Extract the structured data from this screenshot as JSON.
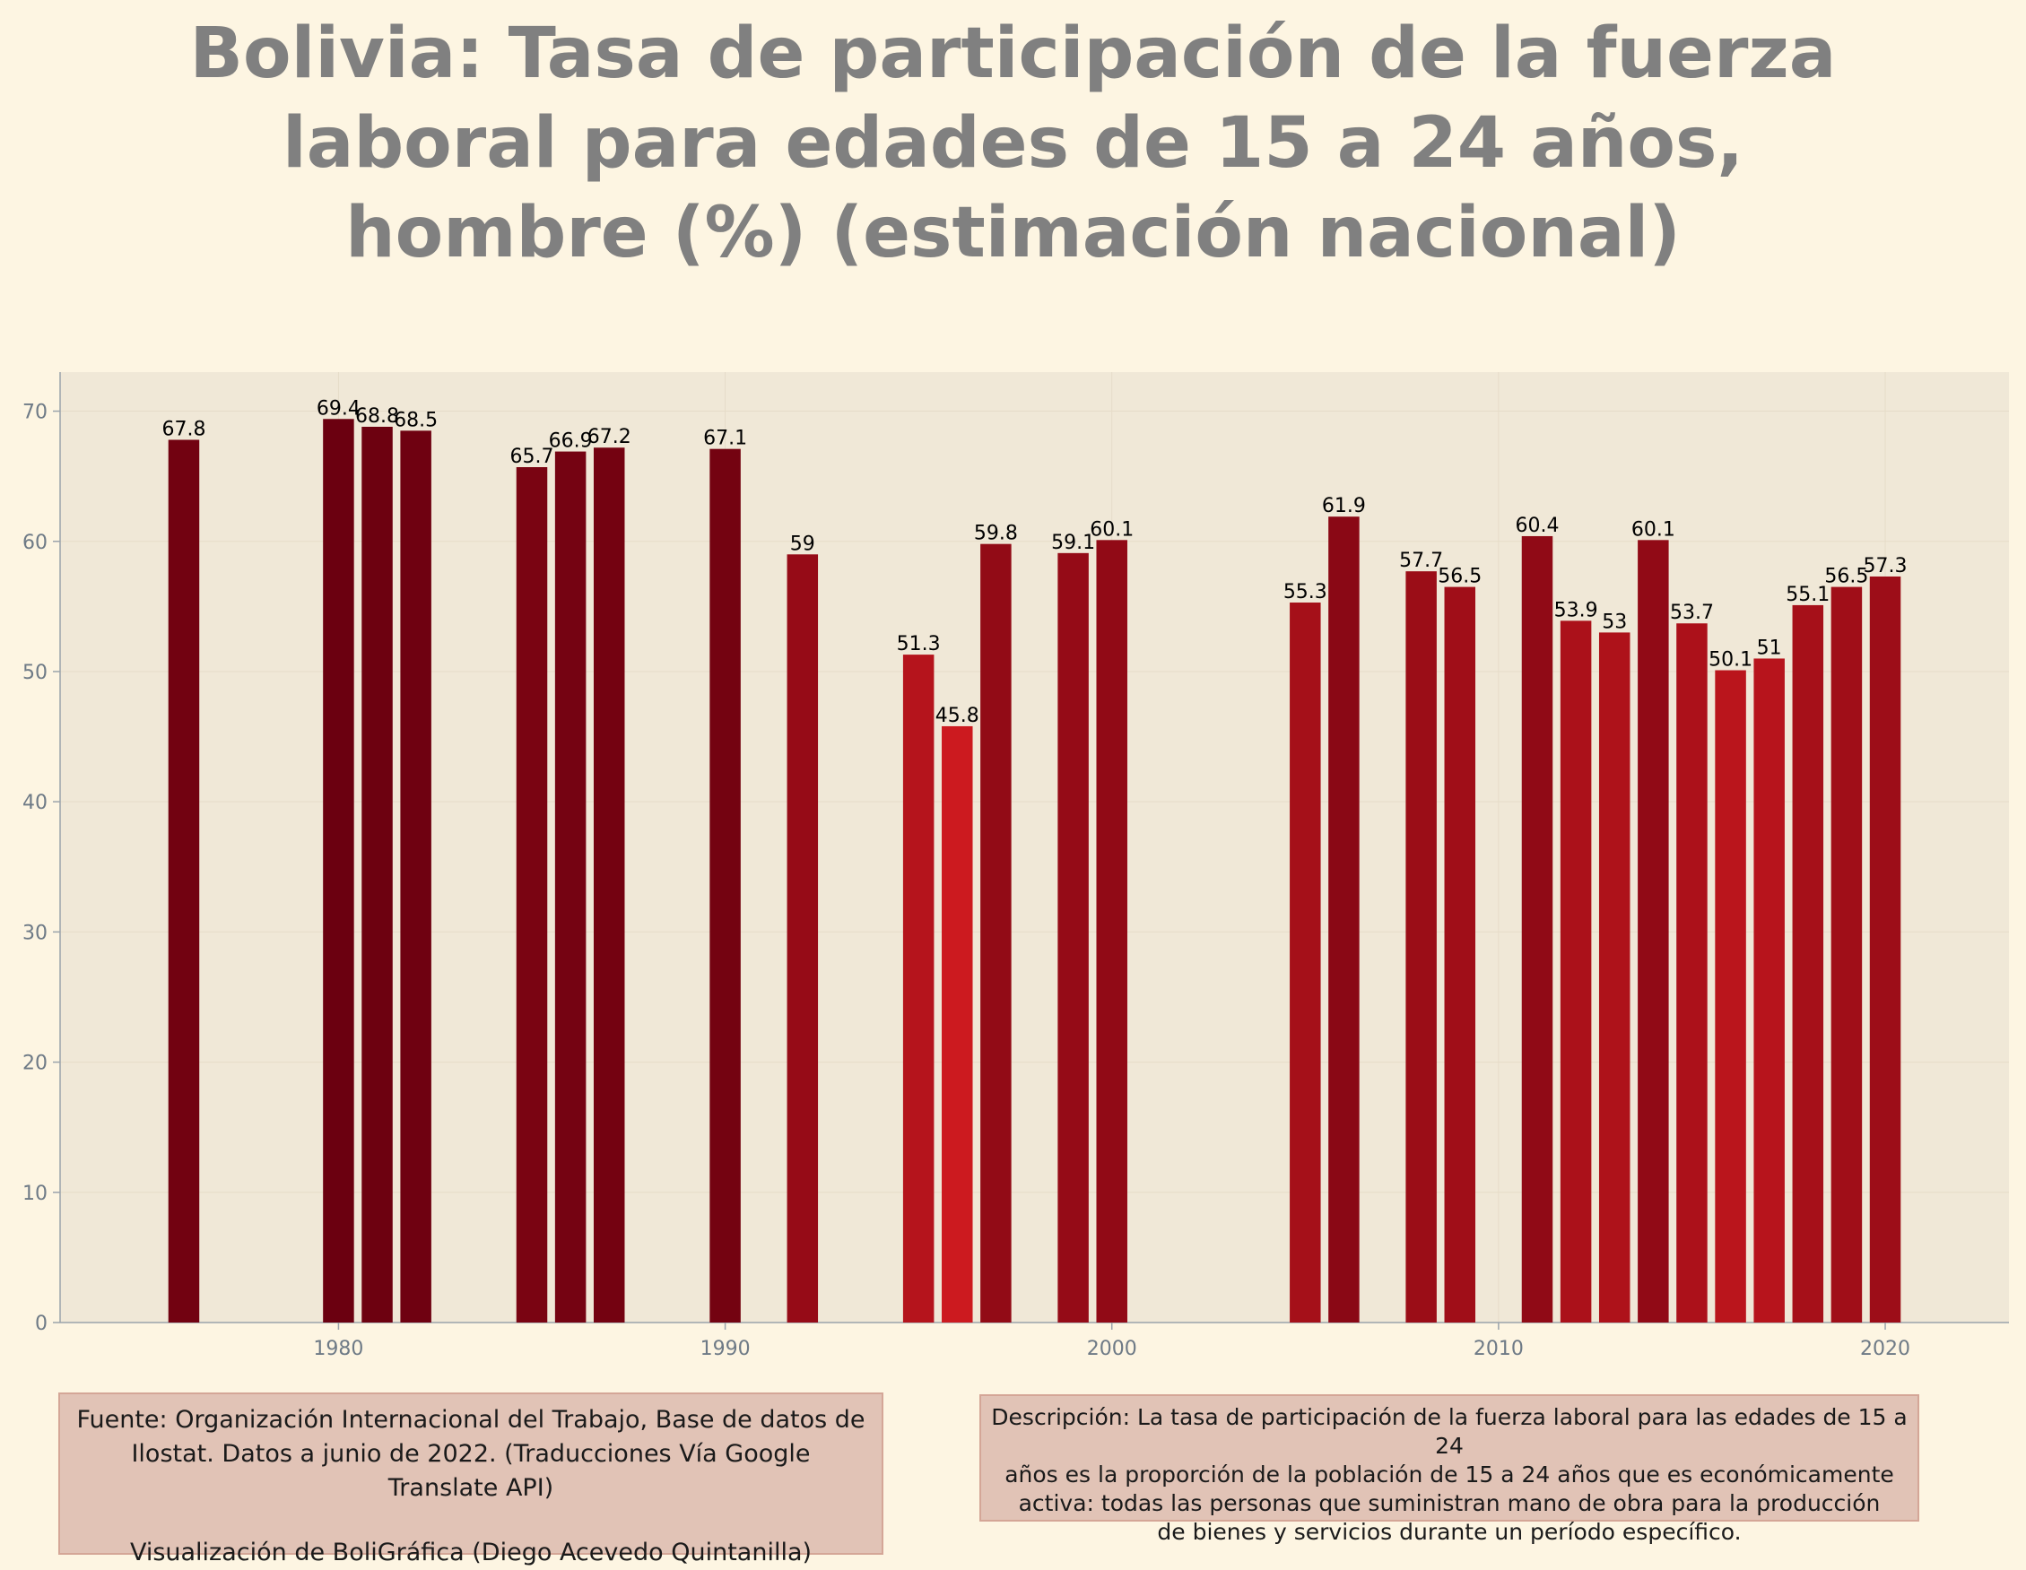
{
  "title_lines": [
    "Bolivia:  Tasa de participación de la fuerza",
    "laboral para edades de 15 a 24 años,",
    "hombre (%) (estimación nacional)"
  ],
  "source_box": {
    "lines": [
      "Fuente: Organización Internacional del Trabajo, Base de datos de",
      "Ilostat. Datos a junio de 2022. (Traducciones Vía Google",
      "Translate API)"
    ],
    "credit": "Visualización de BoliGráfica (Diego Acevedo Quintanilla)"
  },
  "description_box": {
    "lines": [
      "Descripción: La tasa de participación de la fuerza laboral para las edades de 15 a 24",
      "años es la proporción de la población de 15 a 24 años que es económicamente",
      "activa: todas las personas que suministran mano de obra para la producción",
      "de bienes y servicios durante un período específico."
    ]
  },
  "colors": {
    "background": "#fdf5e2",
    "plot_background": "#f0e8d7",
    "title": "#808080",
    "tick": "#6e7a86",
    "bar_high": "#6b0010",
    "bar_low": "#cc1a1f",
    "box_fill": "#e1c3b6",
    "box_border": "#d4a697"
  },
  "chart_data": {
    "type": "bar",
    "title": "Bolivia:  Tasa de participación de la fuerza laboral para edades de 15 a 24 años, hombre (%) (estimación nacional)",
    "xlabel": "",
    "ylabel": "",
    "x": [
      1976,
      1980,
      1981,
      1982,
      1985,
      1986,
      1987,
      1990,
      1992,
      1995,
      1996,
      1997,
      1999,
      2000,
      2005,
      2006,
      2008,
      2009,
      2011,
      2012,
      2013,
      2014,
      2015,
      2016,
      2017,
      2018,
      2019,
      2020
    ],
    "values": [
      67.8,
      69.4,
      68.8,
      68.5,
      65.7,
      66.9,
      67.2,
      67.1,
      59,
      51.3,
      45.8,
      59.8,
      59.1,
      60.1,
      55.3,
      61.9,
      57.7,
      56.5,
      60.4,
      53.9,
      53,
      60.1,
      53.7,
      50.1,
      51,
      55.1,
      56.5,
      57.3
    ],
    "data_labels": [
      "67.8",
      "69.4",
      "68.8",
      "68.5",
      "65.7",
      "66.9",
      "67.2",
      "67.1",
      "59",
      "51.3",
      "45.8",
      "59.8",
      "59.1",
      "60.1",
      "55.3",
      "61.9",
      "57.7",
      "56.5",
      "60.4",
      "53.9",
      "53",
      "60.1",
      "53.7",
      "50.1",
      "51",
      "55.1",
      "56.5",
      "57.3"
    ],
    "xlim": [
      1972.8,
      2023.2
    ],
    "ylim": [
      0,
      73
    ],
    "xticks": [
      1980,
      1990,
      2000,
      2010,
      2020
    ],
    "xtick_labels": [
      "1980",
      "1990",
      "2000",
      "2010",
      "2020"
    ],
    "yticks": [
      0,
      10,
      20,
      30,
      40,
      50,
      60,
      70
    ],
    "ytick_labels": [
      "0",
      "10",
      "20",
      "30",
      "40",
      "50",
      "60",
      "70"
    ],
    "grid": true,
    "legend": "none"
  }
}
